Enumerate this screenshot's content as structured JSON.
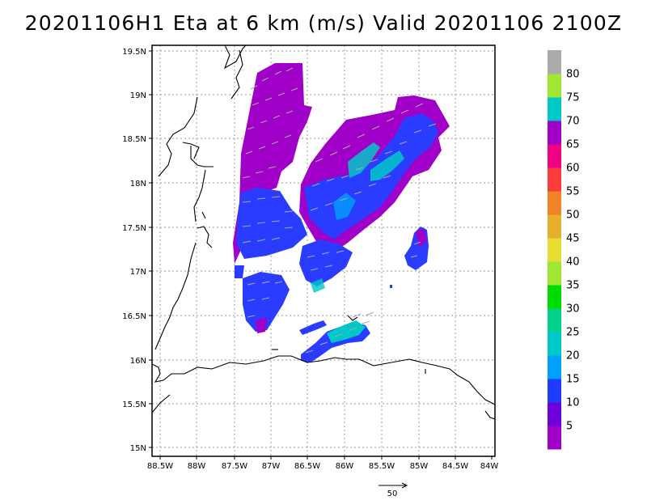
{
  "title": "20201106H1 Eta at 6 km (m/s) Valid 20201106 2100Z",
  "y_ticks": [
    "19.5N",
    "19N",
    "18.5N",
    "18N",
    "17.5N",
    "17N",
    "16.5N",
    "16N",
    "15.5N",
    "15N"
  ],
  "x_ticks": [
    "88.5W",
    "88W",
    "87.5W",
    "87W",
    "86.5W",
    "86W",
    "85.5W",
    "85W",
    "84.5W",
    "84W"
  ],
  "colorbar": {
    "labels": [
      "5",
      "10",
      "15",
      "20",
      "25",
      "30",
      "35",
      "40",
      "45",
      "50",
      "55",
      "60",
      "65",
      "70",
      "75",
      "80"
    ],
    "colors": [
      "#a000c8",
      "#6e00dc",
      "#1e3cff",
      "#00a0ff",
      "#00c8c8",
      "#00d28c",
      "#00dc00",
      "#a0e632",
      "#e6dc32",
      "#e6af2d",
      "#f08228",
      "#fa3c3c",
      "#f00082",
      "#a000c8",
      "#00c8c8",
      "#a0e632",
      "#aaaaaa"
    ]
  },
  "vector_ref": {
    "label": "50"
  },
  "chart_data": {
    "type": "heatmap",
    "title": "20201106H1 Eta at 6 km (m/s) Valid 20201106 2100Z",
    "variable": "wind speed",
    "units": "m/s",
    "level": "6 km",
    "valid": "20201106 2100Z",
    "xlim": [
      -88.5,
      -84.0
    ],
    "ylim": [
      15.0,
      19.5
    ],
    "x_ticks": [
      "88.5W",
      "88W",
      "87.5W",
      "87W",
      "86.5W",
      "86W",
      "85.5W",
      "85W",
      "84.5W",
      "84W"
    ],
    "y_ticks": [
      "15N",
      "15.5N",
      "16N",
      "16.5N",
      "17N",
      "17.5N",
      "18N",
      "18.5N",
      "19N",
      "19.5N"
    ],
    "colorbar_levels": [
      5,
      10,
      15,
      20,
      25,
      30,
      35,
      40,
      45,
      50,
      55,
      60,
      65,
      70,
      75,
      80
    ],
    "grid": true,
    "reference_vector": 50
  }
}
